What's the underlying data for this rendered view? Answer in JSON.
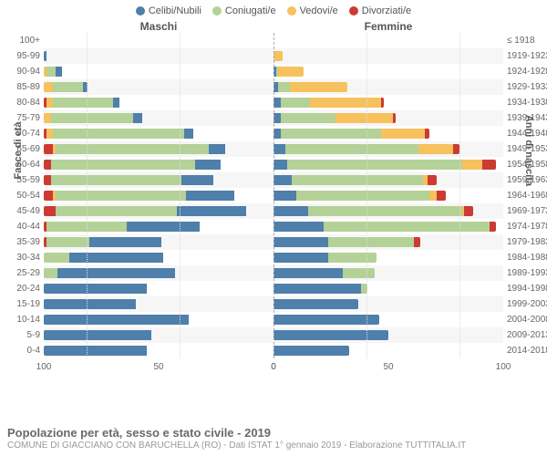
{
  "chart": {
    "type": "population-pyramid",
    "legend": {
      "items": [
        {
          "label": "Celibi/Nubili",
          "color": "#4f7fab"
        },
        {
          "label": "Coniugati/e",
          "color": "#b4d197"
        },
        {
          "label": "Vedovi/e",
          "color": "#f7c15d"
        },
        {
          "label": "Divorziati/e",
          "color": "#cc3a33"
        }
      ]
    },
    "headers": {
      "left": "Maschi",
      "right": "Femmine"
    },
    "axis": {
      "left_title": "Fasce di età",
      "right_title": "Anni di nascita",
      "xmax": 100,
      "ticks": [
        0,
        50,
        100
      ],
      "label_fontsize": 10,
      "title_fontsize": 11,
      "grid_color": "#dddddd",
      "band_color": "#f6f6f6",
      "centerline_color": "#aaaaaa"
    },
    "colors": {
      "celibi": "#4f7fab",
      "coniugati": "#b4d197",
      "vedovi": "#f7c15d",
      "divorziati": "#cc3a33",
      "background": "#ffffff"
    },
    "bar_height_pct": 68,
    "rows": [
      {
        "age": "100+",
        "birth": "≤ 1918",
        "m": [
          0,
          0,
          0,
          0
        ],
        "f": [
          0,
          0,
          0,
          0
        ]
      },
      {
        "age": "95-99",
        "birth": "1919-1923",
        "m": [
          1,
          0,
          0,
          0
        ],
        "f": [
          0,
          0,
          4,
          0
        ]
      },
      {
        "age": "90-94",
        "birth": "1924-1928",
        "m": [
          3,
          4,
          1,
          0
        ],
        "f": [
          1,
          1,
          11,
          0
        ]
      },
      {
        "age": "85-89",
        "birth": "1929-1933",
        "m": [
          2,
          13,
          4,
          0
        ],
        "f": [
          2,
          5,
          25,
          0
        ]
      },
      {
        "age": "80-84",
        "birth": "1934-1938",
        "m": [
          3,
          26,
          3,
          1
        ],
        "f": [
          3,
          13,
          31,
          1
        ]
      },
      {
        "age": "75-79",
        "birth": "1939-1943",
        "m": [
          4,
          36,
          3,
          0
        ],
        "f": [
          3,
          24,
          25,
          1
        ]
      },
      {
        "age": "70-74",
        "birth": "1944-1948",
        "m": [
          4,
          57,
          3,
          1
        ],
        "f": [
          3,
          44,
          19,
          2
        ]
      },
      {
        "age": "65-69",
        "birth": "1949-1953",
        "m": [
          7,
          67,
          1,
          4
        ],
        "f": [
          5,
          58,
          15,
          3
        ]
      },
      {
        "age": "60-64",
        "birth": "1954-1958",
        "m": [
          11,
          63,
          0,
          3
        ],
        "f": [
          6,
          76,
          9,
          6
        ]
      },
      {
        "age": "55-59",
        "birth": "1959-1963",
        "m": [
          14,
          57,
          0,
          3
        ],
        "f": [
          8,
          57,
          2,
          4
        ]
      },
      {
        "age": "50-54",
        "birth": "1964-1968",
        "m": [
          21,
          57,
          1,
          4
        ],
        "f": [
          10,
          58,
          3,
          4
        ]
      },
      {
        "age": "45-49",
        "birth": "1969-1973",
        "m": [
          30,
          53,
          0,
          5
        ],
        "f": [
          15,
          67,
          1,
          4
        ]
      },
      {
        "age": "40-44",
        "birth": "1974-1978",
        "m": [
          32,
          35,
          0,
          1
        ],
        "f": [
          22,
          72,
          0,
          3
        ]
      },
      {
        "age": "35-39",
        "birth": "1979-1983",
        "m": [
          31,
          19,
          0,
          1
        ],
        "f": [
          24,
          37,
          0,
          3
        ]
      },
      {
        "age": "30-34",
        "birth": "1984-1988",
        "m": [
          41,
          11,
          0,
          0
        ],
        "f": [
          24,
          21,
          0,
          0
        ]
      },
      {
        "age": "25-29",
        "birth": "1989-1993",
        "m": [
          51,
          6,
          0,
          0
        ],
        "f": [
          30,
          14,
          0,
          0
        ]
      },
      {
        "age": "20-24",
        "birth": "1994-1998",
        "m": [
          45,
          0,
          0,
          0
        ],
        "f": [
          38,
          3,
          0,
          0
        ]
      },
      {
        "age": "15-19",
        "birth": "1999-2003",
        "m": [
          40,
          0,
          0,
          0
        ],
        "f": [
          37,
          0,
          0,
          0
        ]
      },
      {
        "age": "10-14",
        "birth": "2004-2008",
        "m": [
          63,
          0,
          0,
          0
        ],
        "f": [
          46,
          0,
          0,
          0
        ]
      },
      {
        "age": "5-9",
        "birth": "2009-2013",
        "m": [
          47,
          0,
          0,
          0
        ],
        "f": [
          50,
          0,
          0,
          0
        ]
      },
      {
        "age": "0-4",
        "birth": "2014-2018",
        "m": [
          45,
          0,
          0,
          0
        ],
        "f": [
          33,
          0,
          0,
          0
        ]
      }
    ]
  },
  "footer": {
    "title": "Popolazione per età, sesso e stato civile - 2019",
    "subtitle": "COMUNE DI GIACCIANO CON BARUCHELLA (RO) - Dati ISTAT 1° gennaio 2019 - Elaborazione TUTTITALIA.IT"
  }
}
